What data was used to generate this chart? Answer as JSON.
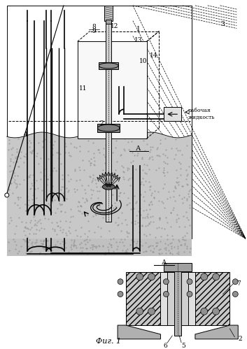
{
  "fig_label": "Фиг. 1",
  "background_color": "#ffffff",
  "line_color": "#000000",
  "working_fluid_label": "рабочая\nжидкость"
}
